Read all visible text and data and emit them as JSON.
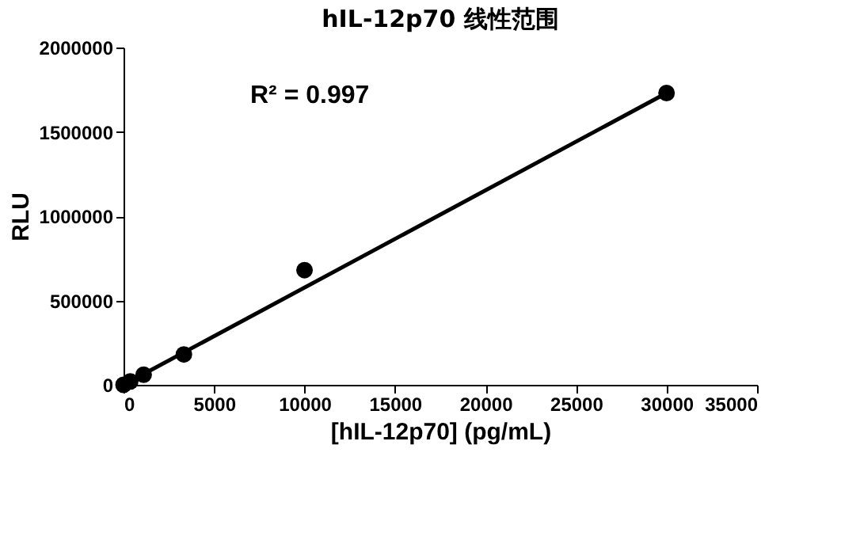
{
  "chart_data": {
    "type": "scatter",
    "title": "hIL-12p70  线性范围",
    "xlabel": "[hIL-12p70] (pg/mL)",
    "ylabel": "RLU",
    "x": [
      0,
      370,
      1111,
      3333,
      10000,
      30000
    ],
    "series": [
      {
        "marker": "circle",
        "color": "#000000",
        "values": [
          0,
          20000,
          60000,
          180000,
          680000,
          1730000
        ]
      },
      {
        "type": "line",
        "marker": "none",
        "color": "#000000",
        "x": [
          0,
          30000
        ],
        "values": [
          0,
          1730000
        ]
      }
    ],
    "xlim": [
      0,
      35000
    ],
    "xticks": [
      0,
      5000,
      10000,
      15000,
      20000,
      25000,
      30000,
      35000
    ],
    "ylim": [
      0,
      2000000
    ],
    "yticks": [
      0,
      500000,
      1000000,
      1500000,
      2000000
    ],
    "annotations": [
      "R² = 0.997"
    ],
    "grid": false
  }
}
